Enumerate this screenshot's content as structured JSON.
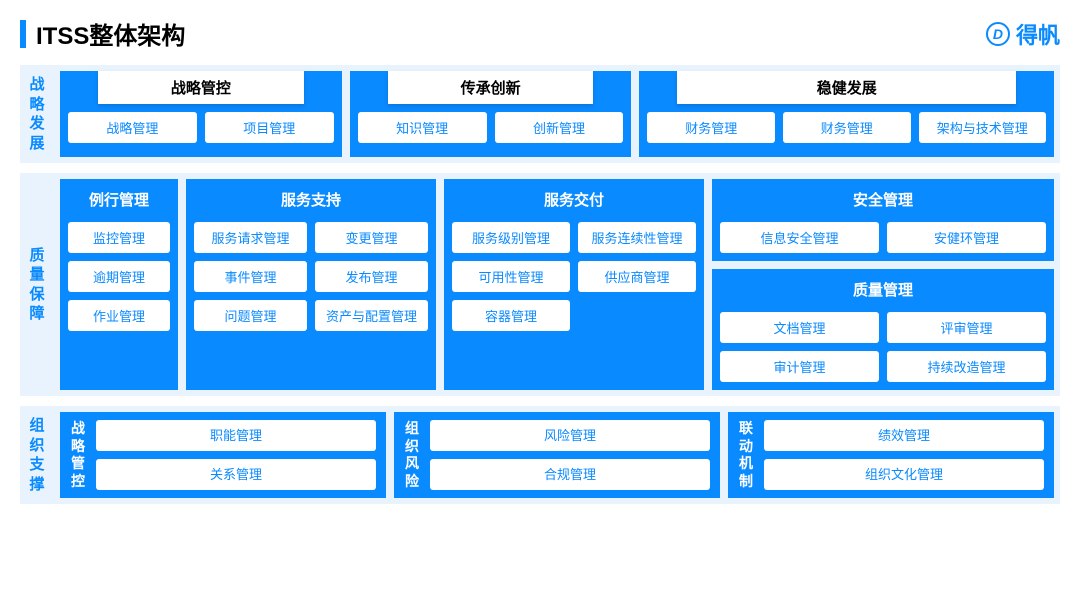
{
  "colors": {
    "primary": "#0a8aff",
    "light": "#e8f3fd",
    "white": "#ffffff",
    "text_dark": "#000000"
  },
  "header": {
    "title": "ITSS整体架构",
    "logo_text": "得帆",
    "logo_mark": "D"
  },
  "row1": {
    "sidelabel": "战略发展",
    "groups": [
      {
        "header": "战略管控",
        "items": [
          "战略管理",
          "项目管理"
        ]
      },
      {
        "header": "传承创新",
        "items": [
          "知识管理",
          "创新管理"
        ]
      },
      {
        "header": "稳健发展",
        "items": [
          "财务管理",
          "财务管理",
          "架构与技术管理"
        ]
      }
    ]
  },
  "row2": {
    "sidelabel": "质量保障",
    "routine": {
      "title": "例行管理",
      "items": [
        "监控管理",
        "逾期管理",
        "作业管理"
      ]
    },
    "support": {
      "title": "服务支持",
      "items": [
        "服务请求管理",
        "变更管理",
        "事件管理",
        "发布管理",
        "问题管理",
        "资产与配置管理"
      ]
    },
    "delivery": {
      "title": "服务交付",
      "items": [
        "服务级别管理",
        "服务连续性管理",
        "可用性管理",
        "供应商管理",
        "容器管理"
      ]
    },
    "security": {
      "title": "安全管理",
      "items": [
        "信息安全管理",
        "安健环管理"
      ]
    },
    "quality": {
      "title": "质量管理",
      "items": [
        "文档管理",
        "评审管理",
        "审计管理",
        "持续改造管理"
      ]
    }
  },
  "row3": {
    "sidelabel": "组织支撑",
    "groups": [
      {
        "vlabel": "战略管控",
        "items": [
          "职能管理",
          "关系管理"
        ]
      },
      {
        "vlabel": "组织风险",
        "items": [
          "风险管理",
          "合规管理"
        ]
      },
      {
        "vlabel": "联动机制",
        "items": [
          "绩效管理",
          "组织文化管理"
        ]
      }
    ]
  }
}
